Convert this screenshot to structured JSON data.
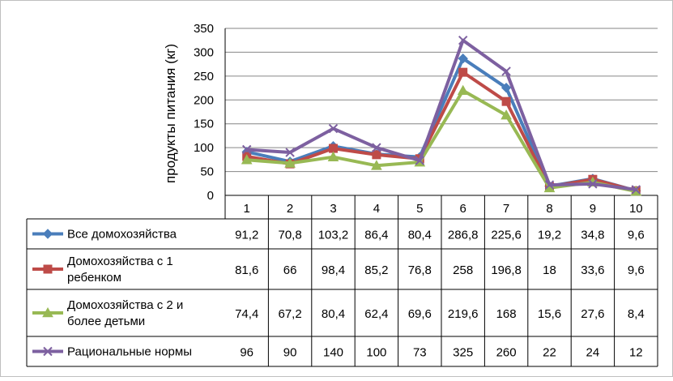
{
  "chart_data": {
    "type": "line",
    "ylabel": "продукты питания (кг)",
    "ylim": [
      0,
      350
    ],
    "yticks": [
      0,
      50,
      100,
      150,
      200,
      250,
      300,
      350
    ],
    "categories": [
      "1",
      "2",
      "3",
      "4",
      "5",
      "6",
      "7",
      "8",
      "9",
      "10"
    ],
    "grid": "horizontal",
    "legend": "data-table",
    "series": [
      {
        "name": "Все домохозяйства",
        "name_lines": [
          "Все домохозяйства"
        ],
        "values": [
          91.2,
          70.8,
          103.2,
          86.4,
          80.4,
          286.8,
          225.6,
          19.2,
          34.8,
          9.6
        ],
        "labels": [
          "91,2",
          "70,8",
          "103,2",
          "86,4",
          "80,4",
          "286,8",
          "225,6",
          "19,2",
          "34,8",
          "9,6"
        ],
        "color": "#4a7ebb",
        "marker": "diamond"
      },
      {
        "name": "Домохозяйства с 1 ребенком",
        "name_lines": [
          "Домохозяйства с 1",
          "ребенком"
        ],
        "values": [
          81.6,
          66,
          98.4,
          85.2,
          76.8,
          258,
          196.8,
          18,
          33.6,
          9.6
        ],
        "labels": [
          "81,6",
          "66",
          "98,4",
          "85,2",
          "76,8",
          "258",
          "196,8",
          "18",
          "33,6",
          "9,6"
        ],
        "color": "#be4b48",
        "marker": "square"
      },
      {
        "name": "Домохозяйства с 2 и более детьми",
        "name_lines": [
          "Домохозяйства с 2 и",
          "более детьми"
        ],
        "values": [
          74.4,
          67.2,
          80.4,
          62.4,
          69.6,
          219.6,
          168,
          15.6,
          27.6,
          8.4
        ],
        "labels": [
          "74,4",
          "67,2",
          "80,4",
          "62,4",
          "69,6",
          "219,6",
          "168",
          "15,6",
          "27,6",
          "8,4"
        ],
        "color": "#98b954",
        "marker": "triangle"
      },
      {
        "name": "Рациональные нормы",
        "name_lines": [
          "Рациональные нормы"
        ],
        "values": [
          96,
          90,
          140,
          100,
          73,
          325,
          260,
          22,
          24,
          12
        ],
        "labels": [
          "96",
          "90",
          "140",
          "100",
          "73",
          "325",
          "260",
          "22",
          "24",
          "12"
        ],
        "color": "#7d60a0",
        "marker": "x"
      }
    ]
  }
}
